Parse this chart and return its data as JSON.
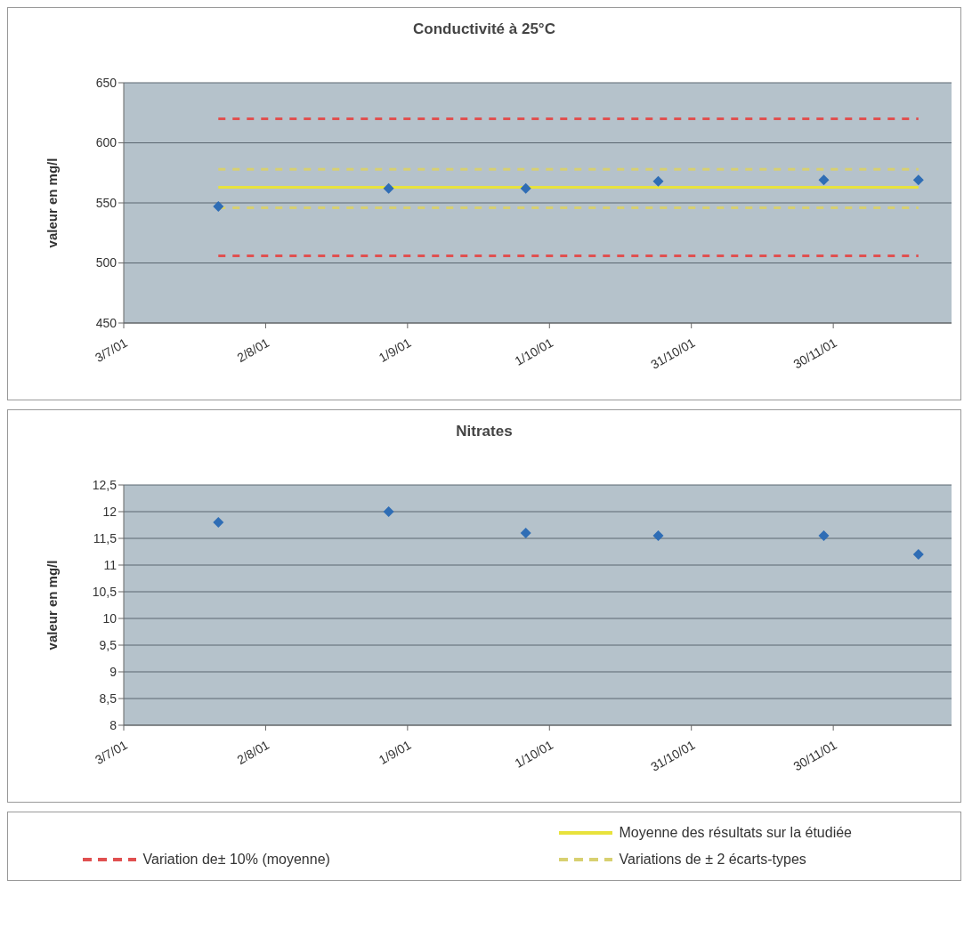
{
  "chart_data": [
    {
      "type": "scatter",
      "title": "Conductivité à 25°C",
      "ylabel": "valeur en mg/l",
      "xlim": [
        "2001-07-03",
        "2001-12-25"
      ],
      "xticks": [
        {
          "value": "2001-07-03",
          "label": "3/7/01"
        },
        {
          "value": "2001-08-02",
          "label": "2/8/01"
        },
        {
          "value": "2001-09-01",
          "label": "1/9/01"
        },
        {
          "value": "2001-10-01",
          "label": "1/10/01"
        },
        {
          "value": "2001-10-31",
          "label": "31/10/01"
        },
        {
          "value": "2001-11-30",
          "label": "30/11/01"
        }
      ],
      "ylim": [
        450,
        650
      ],
      "yticks": [
        450,
        500,
        550,
        600,
        650
      ],
      "grid": "y",
      "legend": "bottom",
      "series": [
        {
          "marker": "diamond",
          "color": "#2f6db5",
          "x": [
            "2001-07-23",
            "2001-08-28",
            "2001-09-26",
            "2001-10-24",
            "2001-11-28",
            "2001-12-18"
          ],
          "values": [
            547,
            562,
            562,
            568,
            569,
            569
          ]
        },
        {
          "type": "line",
          "name": "Variation de± 10% (moyenne)",
          "line_style": "dashed",
          "color": "#e05050",
          "x": [
            "2001-07-23",
            "2001-12-18"
          ],
          "values": [
            620,
            620
          ]
        },
        {
          "type": "line",
          "line_style": "dashed",
          "color": "#e05050",
          "x": [
            "2001-07-23",
            "2001-12-18"
          ],
          "values": [
            506,
            506
          ]
        },
        {
          "type": "line",
          "name": "Moyenne des résultats sur la étudiée",
          "line_style": "solid",
          "color": "#e8e23c",
          "x": [
            "2001-07-23",
            "2001-12-18"
          ],
          "values": [
            563,
            563
          ]
        },
        {
          "type": "line",
          "name": "Variations de ± 2 écarts-types",
          "line_style": "dashed",
          "color": "#d8d070",
          "x": [
            "2001-07-23",
            "2001-12-18"
          ],
          "values": [
            578,
            578
          ]
        },
        {
          "type": "line",
          "line_style": "dashed",
          "color": "#d8d070",
          "x": [
            "2001-07-23",
            "2001-12-18"
          ],
          "values": [
            546,
            546
          ]
        }
      ]
    },
    {
      "type": "scatter",
      "title": "Nitrates",
      "ylabel": "valeur en mg/l",
      "xlim": [
        "2001-07-03",
        "2001-12-25"
      ],
      "xticks": [
        {
          "value": "2001-07-03",
          "label": "3/7/01"
        },
        {
          "value": "2001-08-02",
          "label": "2/8/01"
        },
        {
          "value": "2001-09-01",
          "label": "1/9/01"
        },
        {
          "value": "2001-10-01",
          "label": "1/10/01"
        },
        {
          "value": "2001-10-31",
          "label": "31/10/01"
        },
        {
          "value": "2001-11-30",
          "label": "30/11/01"
        }
      ],
      "ylim": [
        8,
        12.5
      ],
      "yticks": [
        8,
        {
          "value": 8.5,
          "label": "8,5"
        },
        9,
        {
          "value": 9.5,
          "label": "9,5"
        },
        10,
        {
          "value": 10.5,
          "label": "10,5"
        },
        11,
        {
          "value": 11.5,
          "label": "11,5"
        },
        12,
        {
          "value": 12.5,
          "label": "12,5"
        }
      ],
      "grid": "y",
      "series": [
        {
          "marker": "diamond",
          "color": "#2f6db5",
          "x": [
            "2001-07-23",
            "2001-08-28",
            "2001-09-26",
            "2001-10-24",
            "2001-11-28",
            "2001-12-18"
          ],
          "values": [
            11.8,
            12.0,
            11.6,
            11.55,
            11.55,
            11.2
          ]
        }
      ]
    }
  ]
}
